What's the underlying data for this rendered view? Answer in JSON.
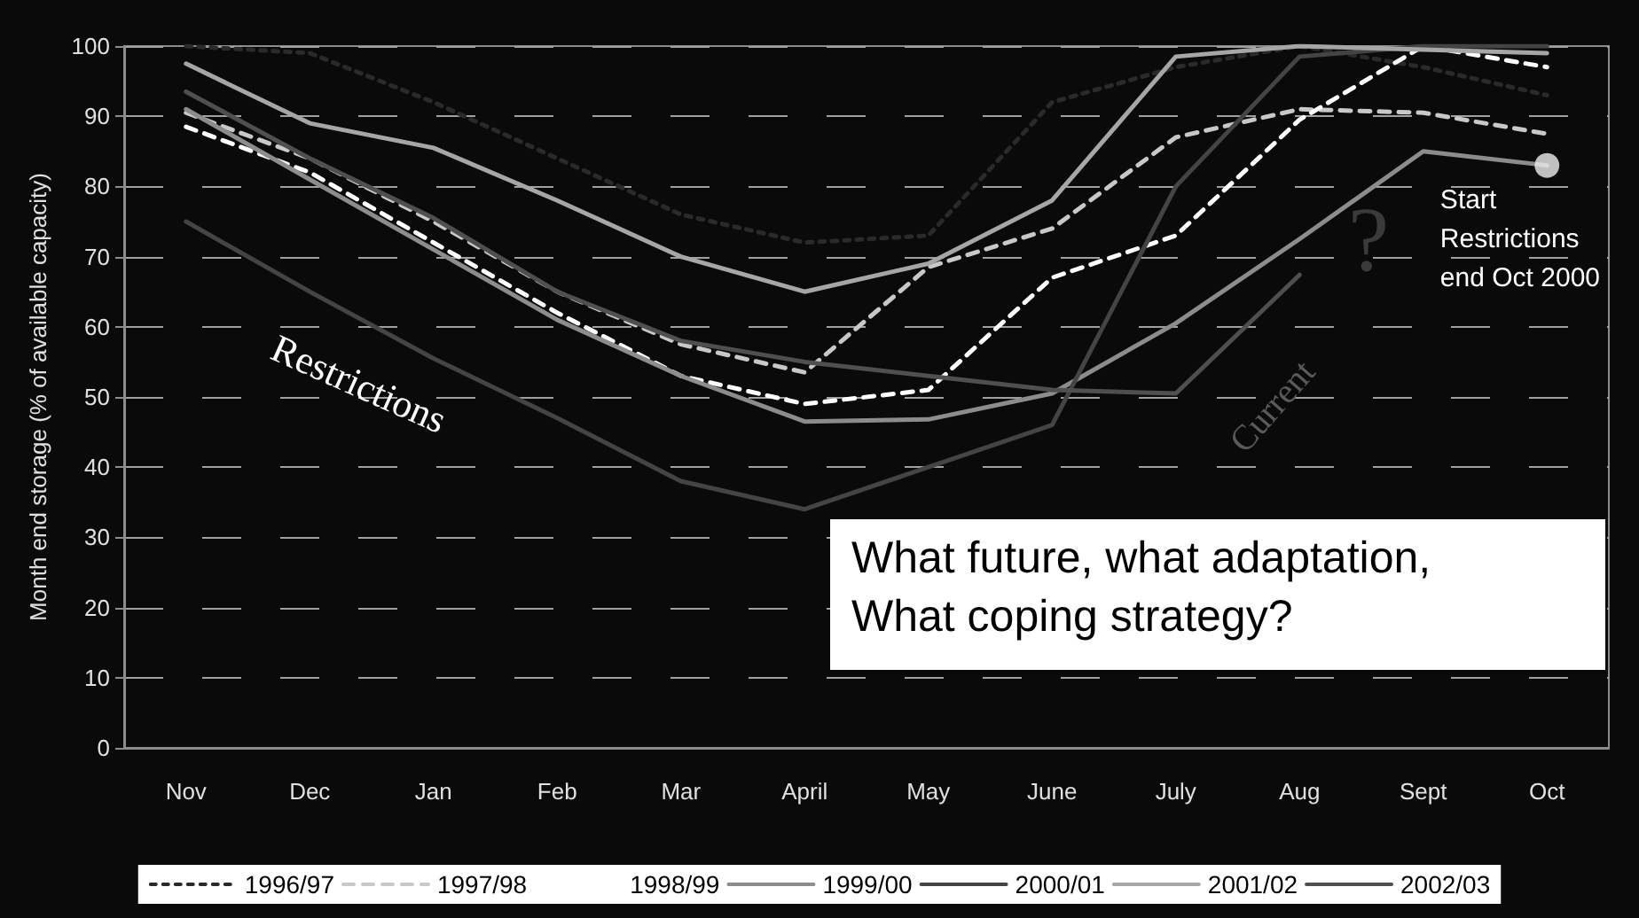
{
  "chart_data": {
    "type": "line",
    "ylabel": "Month end storage (% of available capacity)",
    "categories": [
      "Nov",
      "Dec",
      "Jan",
      "Feb",
      "Mar",
      "April",
      "May",
      "June",
      "July",
      "Aug",
      "Sept",
      "Oct"
    ],
    "ylim": [
      0,
      100
    ],
    "yticks": [
      0,
      10,
      20,
      30,
      40,
      50,
      60,
      70,
      80,
      90,
      100
    ],
    "grid": "y",
    "legend": "bottom",
    "marker": "none",
    "series": [
      {
        "name": "1996/97",
        "color": "#2a2a2a",
        "line_style": "dotted",
        "values": [
          100,
          99,
          92,
          84,
          76,
          72,
          73,
          92,
          97,
          100,
          97,
          93
        ]
      },
      {
        "name": "1997/98",
        "color": "#c8c8c8",
        "line_style": "dashed",
        "values": [
          90.5,
          84,
          75,
          65,
          57.5,
          53.5,
          68.5,
          74,
          87,
          91,
          90.5,
          87.5
        ]
      },
      {
        "name": "1998/99",
        "color": "#ffffff",
        "line_style": "dashed",
        "values": [
          88.5,
          82,
          72,
          62,
          53,
          49,
          51,
          67,
          73,
          89.5,
          100,
          97
        ]
      },
      {
        "name": "1999/00",
        "color": "#8c8c8c",
        "line_style": "solid",
        "values": [
          91,
          81,
          71,
          61,
          53,
          46.5,
          46.8,
          50.5,
          60.5,
          72.5,
          85,
          83
        ]
      },
      {
        "name": "2000/01",
        "color": "#444444",
        "line_style": "solid",
        "values": [
          75,
          65,
          55.5,
          47,
          38,
          34,
          40,
          46,
          80,
          98.5,
          100,
          100
        ]
      },
      {
        "name": "2001/02",
        "color": "#a6a6a6",
        "line_style": "solid",
        "values": [
          97.5,
          89,
          85.5,
          78,
          70,
          65,
          69,
          78,
          98.5,
          100,
          99.5,
          99
        ]
      },
      {
        "name": "2002/03",
        "color": "#4f4f4f",
        "line_style": "solid",
        "values": [
          93.5,
          84,
          75.5,
          65,
          58,
          55,
          53,
          51,
          50.5,
          67.4,
          null,
          null
        ]
      }
    ],
    "annotations": [
      "Restrictions",
      "Current",
      {
        "text": "Start\nRestrictions\nend Oct 2000",
        "x": "Oct",
        "y": 83
      },
      "?",
      "What future, what adaptation,\nWhat coping strategy?"
    ]
  }
}
